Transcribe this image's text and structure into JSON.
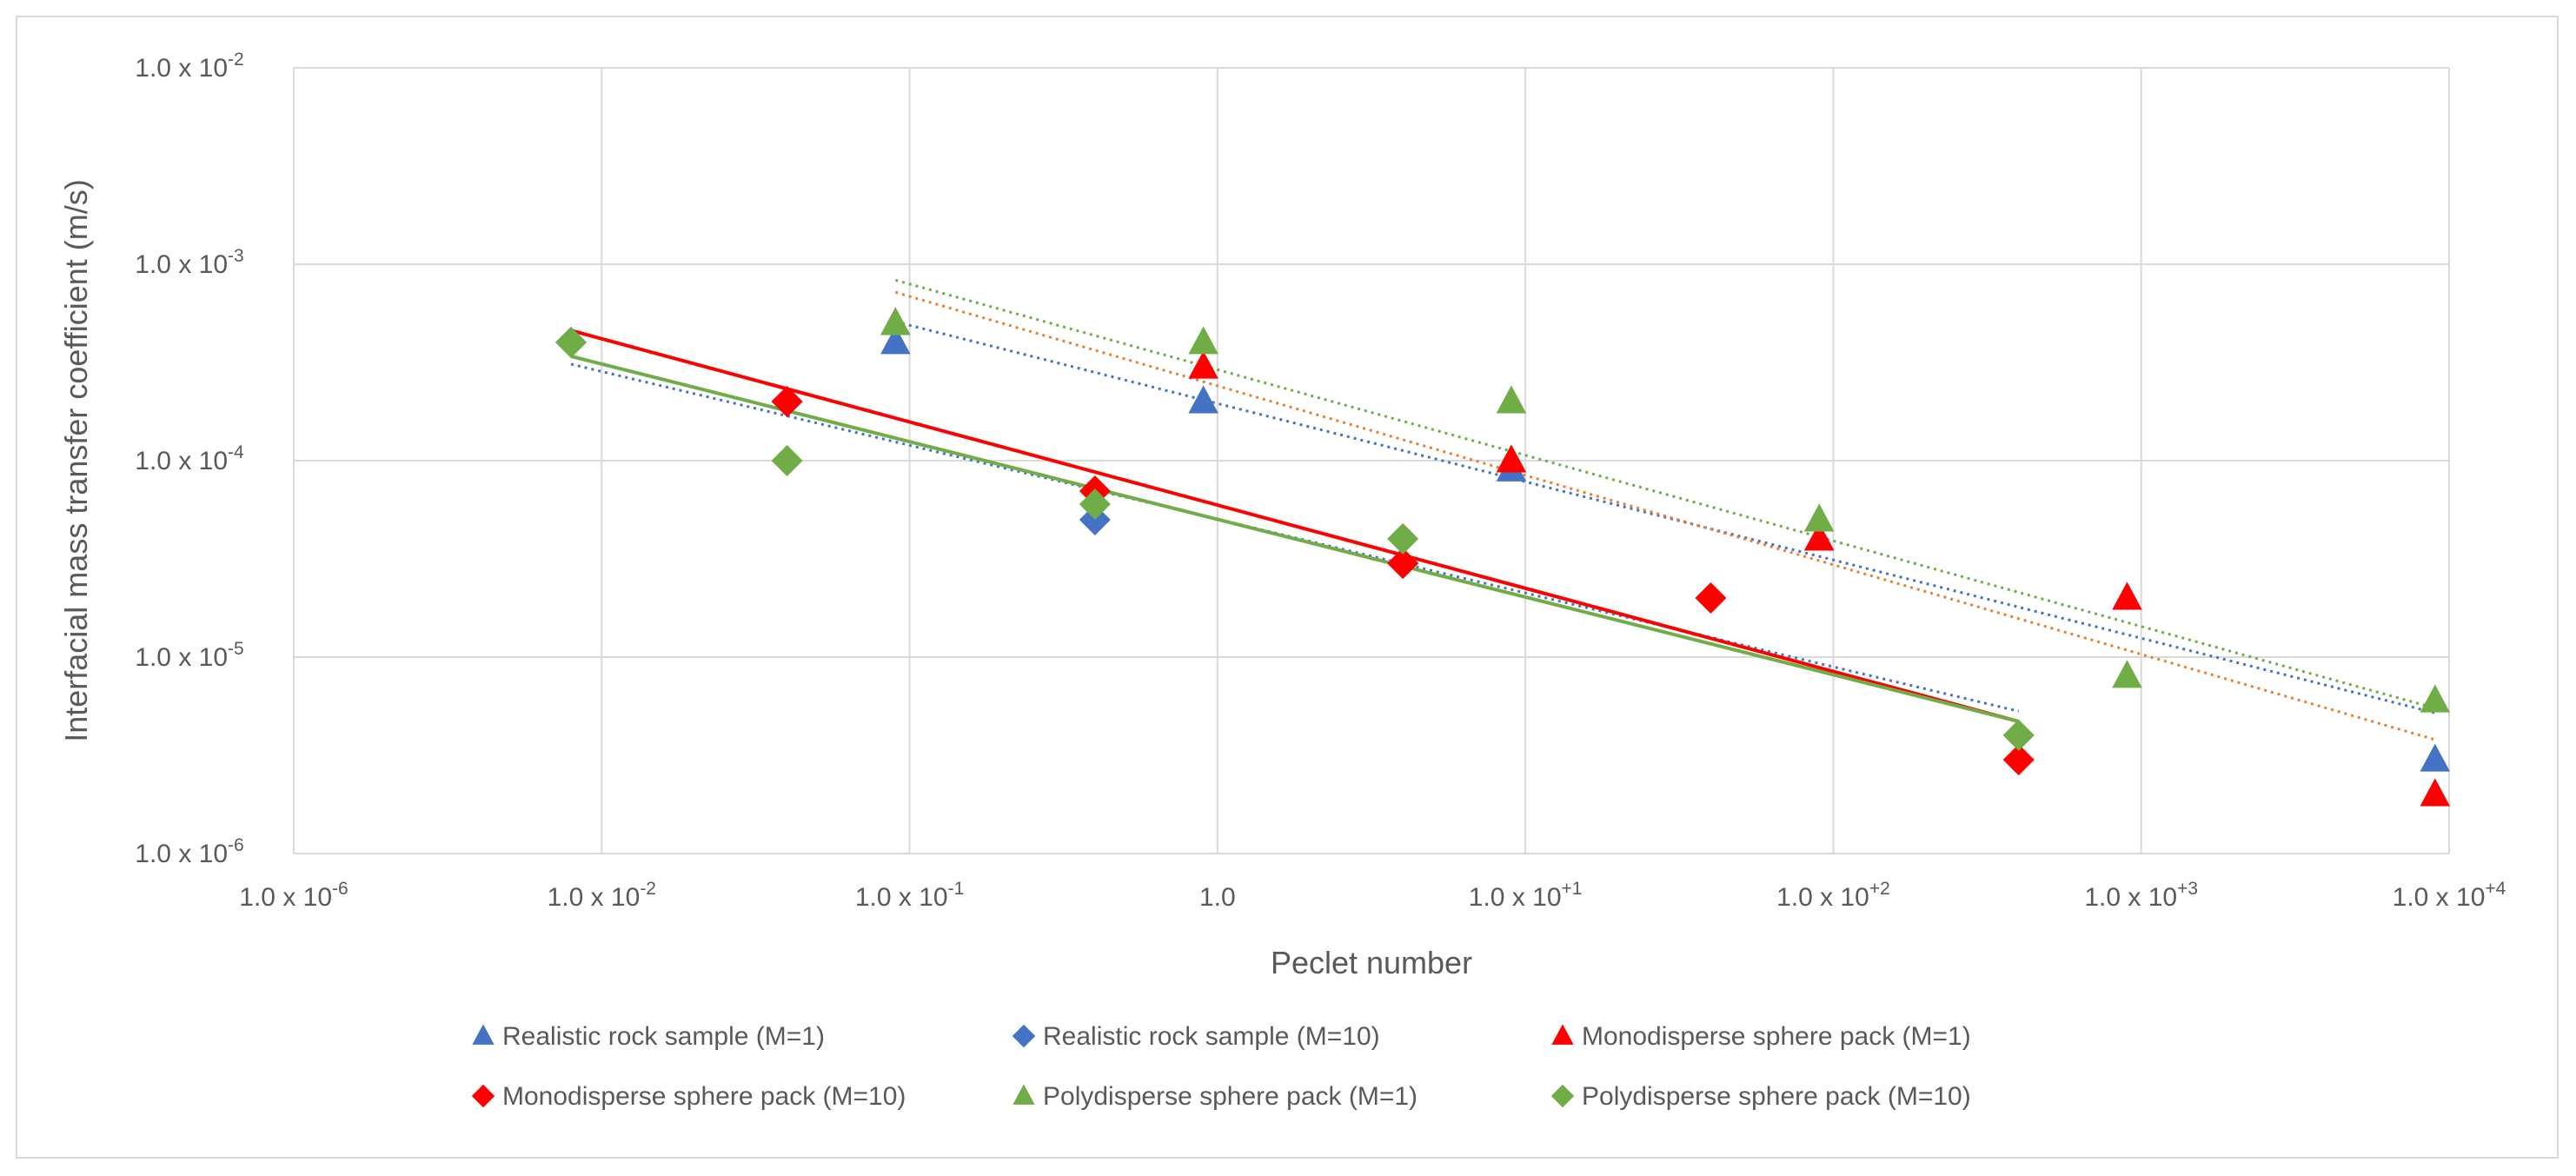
{
  "chart_data": {
    "type": "scatter",
    "title": "",
    "xlabel": "Peclet number",
    "ylabel": "Interfacial mass transfer coefficient (m/s)",
    "x_scale": "log",
    "y_scale": "log",
    "grid": true,
    "legend_position": "bottom",
    "x_ticks": [
      {
        "value": -6,
        "label": "1.0 x 10",
        "sup": "-6"
      },
      {
        "value": -2,
        "label": "1.0 x 10",
        "sup": "-2"
      },
      {
        "value": -1,
        "label": "1.0 x 10",
        "sup": "-1"
      },
      {
        "value": 0,
        "label": "1.0",
        "sup": ""
      },
      {
        "value": 1,
        "label": "1.0 x 10",
        "sup": "+1"
      },
      {
        "value": 2,
        "label": "1.0 x 10",
        "sup": "+2"
      },
      {
        "value": 3,
        "label": "1.0 x 10",
        "sup": "+3"
      },
      {
        "value": 4,
        "label": "1.0 x 10",
        "sup": "+4"
      }
    ],
    "y_ticks": [
      {
        "value": -6,
        "label": "1.0 x 10",
        "sup": "-6"
      },
      {
        "value": -5,
        "label": "1.0 x 10",
        "sup": "-5"
      },
      {
        "value": -4,
        "label": "1.0 x 10",
        "sup": "-4"
      },
      {
        "value": -3,
        "label": "1.0 x 10",
        "sup": "-3"
      },
      {
        "value": -2,
        "label": "1.0 x 10",
        "sup": "-2"
      }
    ],
    "series": [
      {
        "name": "Realistic rock sample (M=1)",
        "marker": "triangle",
        "color": "#4472C4",
        "points": [
          [
            0.09,
            0.0004
          ],
          [
            0.9,
            0.0002
          ],
          [
            9,
            9e-05
          ],
          [
            90,
            4e-05
          ],
          [
            9000,
            3e-06
          ]
        ],
        "trendline": {
          "style": "dotted",
          "x": [
            0.09,
            9000
          ],
          "y": [
            0.00051,
            5.2e-06
          ]
        }
      },
      {
        "name": "Realistic rock sample (M=10)",
        "marker": "diamond",
        "color": "#4472C4",
        "points": [
          [
            0.004,
            0.0004
          ],
          [
            0.04,
            0.0002
          ],
          [
            0.4,
            5e-05
          ],
          [
            4,
            3e-05
          ],
          [
            400,
            4e-06
          ]
        ],
        "trendline": {
          "style": "dotted",
          "x": [
            0.004,
            400
          ],
          "y": [
            0.00031,
            5.3e-06
          ]
        }
      },
      {
        "name": "Monodisperse sphere pack (M=1)",
        "marker": "triangle",
        "color": "#FF0000",
        "points": [
          [
            0.09,
            0.0005
          ],
          [
            0.9,
            0.0003
          ],
          [
            9,
            0.0001
          ],
          [
            90,
            4e-05
          ],
          [
            900,
            2e-05
          ],
          [
            9000,
            2e-06
          ]
        ],
        "trendline": {
          "style": "dotted",
          "color": "#ED7D31",
          "x": [
            0.09,
            9000
          ],
          "y": [
            0.00072,
            3.8e-06
          ]
        }
      },
      {
        "name": "Monodisperse sphere pack (M=10)",
        "marker": "diamond",
        "color": "#FF0000",
        "points": [
          [
            0.04,
            0.0002
          ],
          [
            0.4,
            7e-05
          ],
          [
            4,
            3e-05
          ],
          [
            40,
            2e-05
          ],
          [
            400,
            3e-06
          ]
        ],
        "trendline": {
          "style": "solid",
          "x": [
            0.004,
            400
          ],
          "y": [
            0.00046,
            4.7e-06
          ]
        }
      },
      {
        "name": "Polydisperse sphere pack (M=1)",
        "marker": "triangle",
        "color": "#70AD47",
        "points": [
          [
            0.09,
            0.0005
          ],
          [
            0.9,
            0.0004
          ],
          [
            9,
            0.0002
          ],
          [
            90,
            5e-05
          ],
          [
            900,
            8e-06
          ],
          [
            9000,
            6e-06
          ]
        ],
        "trendline": {
          "style": "dotted",
          "x": [
            0.09,
            9000
          ],
          "y": [
            0.00083,
            5.5e-06
          ]
        }
      },
      {
        "name": "Polydisperse sphere pack (M=10)",
        "marker": "diamond",
        "color": "#70AD47",
        "points": [
          [
            0.004,
            0.0004
          ],
          [
            0.04,
            0.0001
          ],
          [
            0.4,
            6e-05
          ],
          [
            4,
            4e-05
          ],
          [
            400,
            4e-06
          ]
        ],
        "trendline": {
          "style": "solid",
          "x": [
            0.004,
            400
          ],
          "y": [
            0.00034,
            4.7e-06
          ]
        }
      }
    ]
  }
}
